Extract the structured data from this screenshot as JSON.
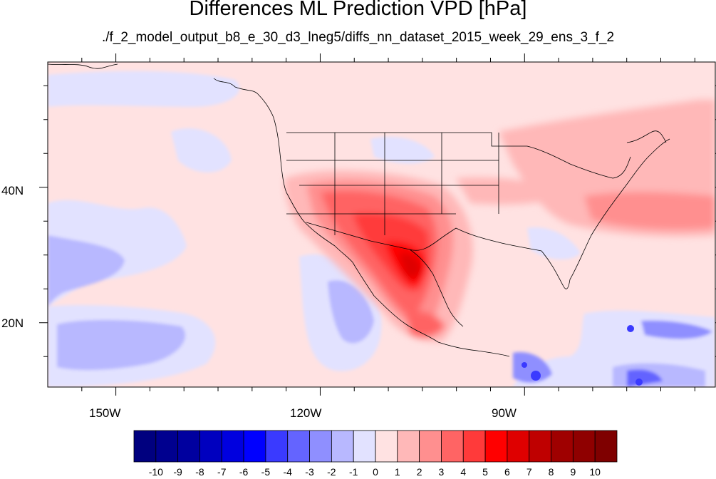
{
  "title": "Differences ML Prediction VPD [hPa]",
  "subtitle": "./f_2_model_output_b8_e_30_d3_lneg5/diffs_nn_dataset_2015_week_29_ens_3_f_2",
  "map": {
    "type": "filled contour map",
    "region": "North Pacific, North America, western Atlantic",
    "lon_range": [
      -160,
      -62
    ],
    "lat_range": [
      10.5,
      58.5
    ],
    "lon_ticks": [
      {
        "value": -150,
        "label": "150W"
      },
      {
        "value": -120,
        "label": "120W"
      },
      {
        "value": -90,
        "label": "90W"
      }
    ],
    "lat_ticks": [
      {
        "value": 40,
        "label": "40N"
      },
      {
        "value": 20,
        "label": "20N"
      }
    ],
    "features": "coastlines, national and US state boundaries",
    "pattern": "strong positive difference over southwestern US and northern/western Mexico (max about 8-9); weak positive over central/northeastern US and western Atlantic; weak negative over eastern Pacific near Baja California, Hawaii region, Caribbean and Central America"
  },
  "colorbar": {
    "labels": [
      "-10",
      "-9",
      "-8",
      "-7",
      "-6",
      "-5",
      "-4",
      "-3",
      "-2",
      "-1",
      "0",
      "1",
      "2",
      "3",
      "4",
      "5",
      "6",
      "7",
      "8",
      "9",
      "10"
    ],
    "colors": [
      "#00007f",
      "#00008f",
      "#00009f",
      "#0000bf",
      "#0000df",
      "#0000ff",
      "#3a3aff",
      "#6464ff",
      "#8f8fff",
      "#b8b8ff",
      "#e2e2ff",
      "#ffe2e2",
      "#ffb8b8",
      "#ff8f8f",
      "#ff6464",
      "#ff3a3a",
      "#ff0000",
      "#df0000",
      "#bf0000",
      "#9f0000",
      "#8f0000",
      "#7f0000"
    ]
  }
}
